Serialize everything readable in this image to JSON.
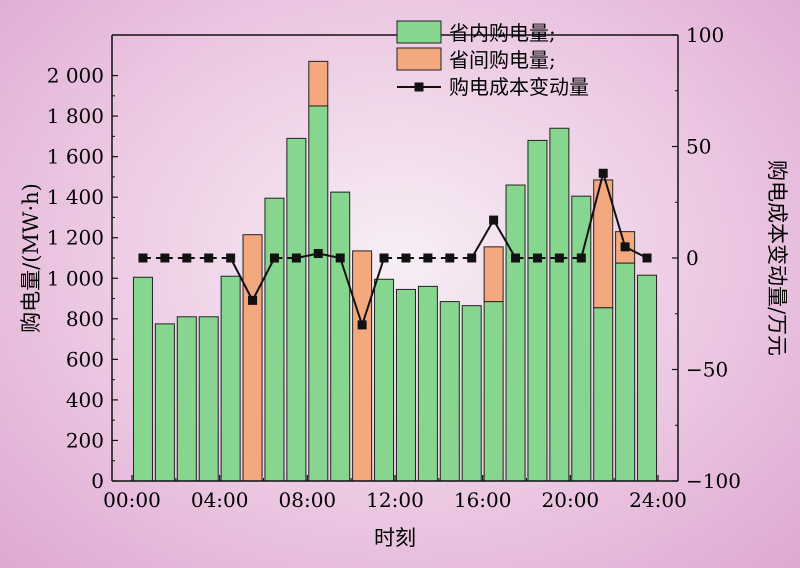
{
  "chart_data": {
    "type": "bar",
    "stacked": true,
    "x_labels": [
      "00:00",
      "04:00",
      "08:00",
      "12:00",
      "16:00",
      "20:00",
      "24:00"
    ],
    "xlabel": "时刻",
    "ylabel_left": "购电量/(MW·h)",
    "ylabel_right": "购电成本变动量/万元",
    "ylim_left": [
      0,
      2200
    ],
    "yticks_left": [
      "0",
      "200",
      "400",
      "600",
      "800",
      "1 000",
      "1 200",
      "1 400",
      "1 600",
      "1 800",
      "2 000"
    ],
    "ylim_right": [
      -100,
      100
    ],
    "yticks_right": [
      "−100",
      "−50",
      "0",
      "50",
      "100"
    ],
    "hours": [
      0,
      1,
      2,
      3,
      4,
      5,
      6,
      7,
      8,
      9,
      10,
      11,
      12,
      13,
      14,
      15,
      16,
      17,
      18,
      19,
      20,
      21,
      22,
      23
    ],
    "series": [
      {
        "name": "省内购电量;",
        "color": "#86d68f",
        "values": [
          1005,
          775,
          810,
          810,
          1010,
          0,
          1395,
          1690,
          1850,
          1425,
          0,
          995,
          945,
          960,
          885,
          865,
          885,
          1460,
          1680,
          1740,
          1405,
          855,
          1075,
          1015
        ]
      },
      {
        "name": "省间购电量;",
        "color": "#f4a87e",
        "values": [
          0,
          0,
          0,
          0,
          0,
          1215,
          0,
          0,
          220,
          0,
          1135,
          0,
          0,
          0,
          0,
          0,
          270,
          0,
          0,
          0,
          0,
          630,
          155,
          0
        ]
      },
      {
        "name": "购电成本变动量",
        "type": "line",
        "values": [
          0,
          0,
          0,
          0,
          0,
          -19,
          0,
          0,
          2,
          0,
          -30,
          0,
          0,
          0,
          0,
          0,
          17,
          0,
          0,
          0,
          0,
          38,
          5,
          0
        ]
      }
    ]
  }
}
